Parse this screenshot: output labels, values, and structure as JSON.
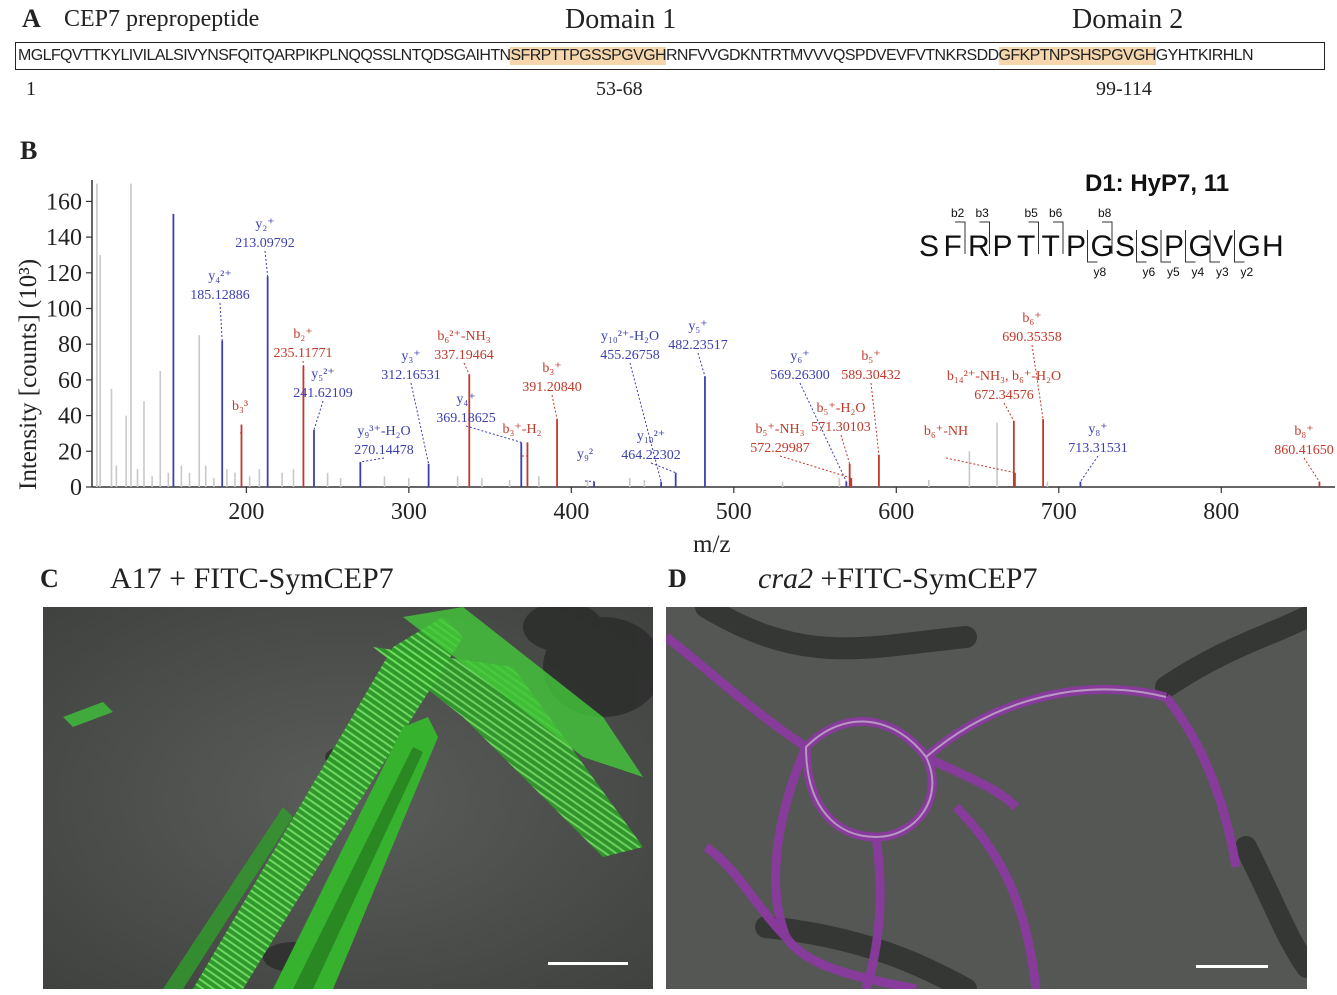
{
  "panel_a": {
    "letter": "A",
    "title": "CEP7 prepropeptide",
    "domain1_label": "Domain 1",
    "domain2_label": "Domain 2",
    "sequence_parts": [
      "MGLFQVTTKYLIVILALSIVYNSFQITQARPIKPLNQQSSLNTQDSGAIHTN",
      "SFRPTTPGSSPGVGH",
      "RNFVVGDKNTRTMVVVQSPDVEVFVTNKRSDD",
      "GFKPTNPSHSPGVGH",
      "GYHTKIRHLN"
    ],
    "pos_start": "1",
    "pos_domain1": "53-68",
    "pos_domain2": "99-114",
    "highlight_color": "#f6d7ad"
  },
  "panel_b": {
    "letter": "B",
    "peptide_title": "D1: HyP7, 11",
    "peptide_sequence": [
      "S",
      "F",
      "R",
      "P",
      "T",
      "T",
      "P",
      "G",
      "S",
      "S",
      "P",
      "G",
      "V",
      "G",
      "H"
    ],
    "b_ion_marks": [
      "b2",
      "b3",
      "b5",
      "b6",
      "b8"
    ],
    "y_ion_marks": [
      "y8",
      "y6",
      "y5",
      "y4",
      "y3",
      "y2"
    ],
    "colors": {
      "y_ions": "#3b3fb0",
      "b_ions": "#c0392b",
      "background_peaks": "#c8c8c8"
    }
  },
  "chart_data": {
    "type": "bar",
    "ylabel": "Intensity [counts] (10³)",
    "xlabel": "m/z",
    "xlim": [
      105,
      870
    ],
    "ylim": [
      0,
      172
    ],
    "xticks": [
      200,
      300,
      400,
      500,
      600,
      700,
      800
    ],
    "yticks": [
      0,
      20,
      40,
      60,
      80,
      100,
      120,
      140,
      160
    ],
    "background_peaks": [
      {
        "x": 108,
        "y": 170
      },
      {
        "x": 110,
        "y": 130
      },
      {
        "x": 117,
        "y": 55
      },
      {
        "x": 120,
        "y": 12
      },
      {
        "x": 126,
        "y": 40
      },
      {
        "x": 129,
        "y": 170
      },
      {
        "x": 133,
        "y": 10
      },
      {
        "x": 137,
        "y": 48
      },
      {
        "x": 142,
        "y": 6
      },
      {
        "x": 147,
        "y": 65
      },
      {
        "x": 152,
        "y": 8
      },
      {
        "x": 160,
        "y": 12
      },
      {
        "x": 165,
        "y": 8
      },
      {
        "x": 171,
        "y": 85
      },
      {
        "x": 175,
        "y": 12
      },
      {
        "x": 180,
        "y": 5
      },
      {
        "x": 188,
        "y": 10
      },
      {
        "x": 193,
        "y": 8
      },
      {
        "x": 202,
        "y": 6
      },
      {
        "x": 208,
        "y": 10
      },
      {
        "x": 222,
        "y": 8
      },
      {
        "x": 229,
        "y": 10
      },
      {
        "x": 250,
        "y": 8
      },
      {
        "x": 258,
        "y": 5
      },
      {
        "x": 285,
        "y": 6
      },
      {
        "x": 300,
        "y": 5
      },
      {
        "x": 330,
        "y": 6
      },
      {
        "x": 345,
        "y": 5
      },
      {
        "x": 362,
        "y": 4
      },
      {
        "x": 380,
        "y": 6
      },
      {
        "x": 410,
        "y": 4
      },
      {
        "x": 436,
        "y": 5
      },
      {
        "x": 445,
        "y": 4
      },
      {
        "x": 530,
        "y": 3
      },
      {
        "x": 565,
        "y": 5
      },
      {
        "x": 620,
        "y": 4
      },
      {
        "x": 645,
        "y": 20
      },
      {
        "x": 662,
        "y": 36
      },
      {
        "x": 693,
        "y": 3
      }
    ],
    "series": [
      {
        "name": "y ions",
        "peaks": [
          {
            "x": 155.1,
            "y": 153,
            "label": "",
            "formula": ""
          },
          {
            "x": 185.13,
            "y": 82,
            "label": "y₄²⁺",
            "value": "185.12886"
          },
          {
            "x": 213.1,
            "y": 118,
            "label": "y₂⁺",
            "value": "213.09792"
          },
          {
            "x": 241.62,
            "y": 32,
            "label": "y₅²⁺",
            "value": "241.62109"
          },
          {
            "x": 270.14,
            "y": 14,
            "label": "y₉³⁺-H₂O",
            "value": "270.14478"
          },
          {
            "x": 312.17,
            "y": 13,
            "label": "y₃⁺",
            "value": "312.16531"
          },
          {
            "x": 369.19,
            "y": 25,
            "label": "y₄⁺",
            "value": "369.18625"
          },
          {
            "x": 414.0,
            "y": 3,
            "label": "y₉²",
            "value": ""
          },
          {
            "x": 455.27,
            "y": 3,
            "label": "y₁₀²⁺-H₂O",
            "value": "455.26758"
          },
          {
            "x": 464.22,
            "y": 8,
            "label": "y₁₀²⁺",
            "value": "464.22302"
          },
          {
            "x": 482.24,
            "y": 62,
            "label": "y₅⁺",
            "value": "482.23517"
          },
          {
            "x": 569.26,
            "y": 3,
            "label": "y₆⁺",
            "value": "569.26300"
          },
          {
            "x": 713.32,
            "y": 3,
            "label": "y₈⁺",
            "value": "713.31531"
          }
        ]
      },
      {
        "name": "b ions",
        "peaks": [
          {
            "x": 197.0,
            "y": 35,
            "label": "b₃³",
            "value": ""
          },
          {
            "x": 235.12,
            "y": 68,
            "label": "b₂⁺",
            "value": "235.11771"
          },
          {
            "x": 337.19,
            "y": 63,
            "label": "b₆²⁺-NH₃",
            "value": "337.19464"
          },
          {
            "x": 373.0,
            "y": 25,
            "label": "b₃⁺-H₂",
            "value": ""
          },
          {
            "x": 391.21,
            "y": 38,
            "label": "b₃⁺",
            "value": "391.20840"
          },
          {
            "x": 571.3,
            "y": 13,
            "label": "b₅⁺-H₂O",
            "value": "571.30103"
          },
          {
            "x": 572.3,
            "y": 5,
            "label": "b₅⁺-NH₃",
            "value": "572.29987"
          },
          {
            "x": 589.3,
            "y": 18,
            "label": "b₅⁺",
            "value": "589.30432"
          },
          {
            "x": 672.35,
            "y": 37,
            "label": "b₁₄²⁺-NH₃, b₆⁺-H₂O",
            "value": "672.34576"
          },
          {
            "x": 673.0,
            "y": 8,
            "label": "b₆⁺-NH",
            "value": ""
          },
          {
            "x": 690.35,
            "y": 38,
            "label": "b₆⁺",
            "value": "690.35358"
          },
          {
            "x": 860.42,
            "y": 3,
            "label": "b₈⁺",
            "value": "860.41650"
          }
        ]
      }
    ]
  },
  "panel_c": {
    "letter": "C",
    "title": "A17 + FITC-SymCEP7",
    "dominant_color": "#3fc23a"
  },
  "panel_d": {
    "letter": "D",
    "title_italic": "cra2",
    "title_rest": " +FITC-SymCEP7",
    "dominant_color": "#8a3a9e"
  }
}
